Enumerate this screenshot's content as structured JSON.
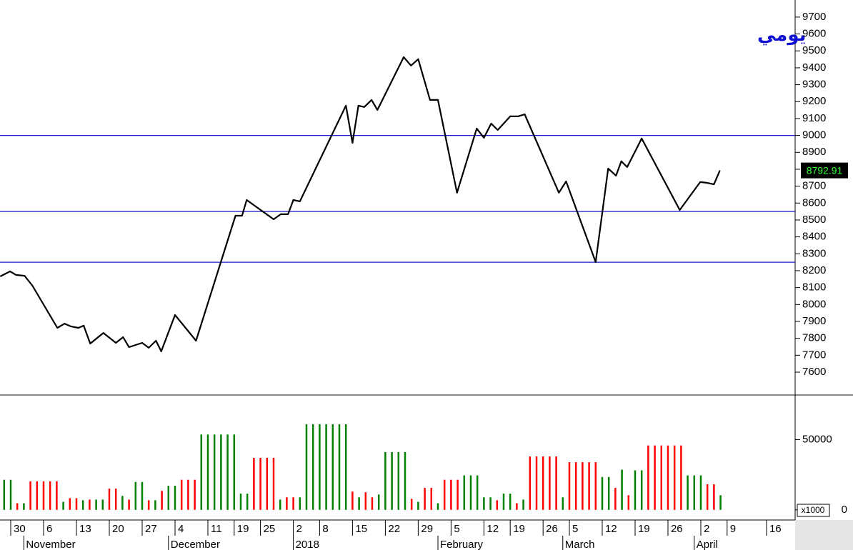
{
  "chart_data": [
    {
      "type": "line",
      "title": "يومي",
      "title_color": "#1010d0",
      "color": "#000000",
      "x": [
        -1.6,
        -0.1,
        0.8,
        2.1,
        3.3,
        7.1,
        8.2,
        9.2,
        10.3,
        11.1,
        12.1,
        14.1,
        16.0,
        17.1,
        18.0,
        20.0,
        21.0,
        22.1,
        22.9,
        25.0,
        28.2,
        34.2,
        35.2,
        35.9,
        40.0,
        41.1,
        42.2,
        43.0,
        44.0,
        51.0,
        52.0,
        52.9,
        53.8,
        54.9,
        55.8,
        59.8,
        60.9,
        62.0,
        63.8,
        65.0,
        67.9,
        70.9,
        72.0,
        73.1,
        74.1,
        76.0,
        77.2,
        78.2,
        83.4,
        84.5,
        89.0,
        90.9,
        92.1,
        92.9,
        93.8,
        96.0,
        101.8,
        104.9,
        105.9,
        107.0,
        107.9
      ],
      "values": [
        8166,
        8196,
        8175,
        8170,
        8111,
        7862,
        7887,
        7870,
        7862,
        7875,
        7769,
        7832,
        7773,
        7807,
        7748,
        7773,
        7744,
        7786,
        7723,
        7938,
        7786,
        8525,
        8525,
        8618,
        8504,
        8534,
        8534,
        8618,
        8610,
        9176,
        8956,
        9176,
        9168,
        9210,
        9151,
        9463,
        9413,
        9451,
        9210,
        9210,
        8661,
        9041,
        8986,
        9070,
        9032,
        9113,
        9113,
        9125,
        8661,
        8728,
        8251,
        8804,
        8762,
        8847,
        8813,
        8982,
        8559,
        8724,
        8720,
        8711,
        8792.91
      ],
      "xlim": [
        -1.63,
        119.35
      ],
      "ylim": [
        7469,
        9801
      ],
      "yticks": [
        7600,
        7700,
        7800,
        7900,
        8000,
        8100,
        8200,
        8300,
        8400,
        8500,
        8600,
        8700,
        8800,
        8900,
        9000,
        9100,
        9200,
        9300,
        9400,
        9500,
        9600,
        9700
      ],
      "hlines": [
        9000,
        8550,
        8250
      ],
      "hline_color": "#1a1acc",
      "last_value": 8792.91
    },
    {
      "type": "bar",
      "unit": "x1000",
      "x": [
        -1,
        0,
        1,
        2,
        3,
        4,
        5,
        6,
        7,
        8,
        9,
        10,
        11,
        12,
        13,
        14,
        15,
        16,
        17,
        18,
        19,
        20,
        21,
        22,
        23,
        24,
        25,
        26,
        27,
        28,
        29,
        30,
        31,
        32,
        33,
        34,
        35,
        36,
        37,
        38,
        39,
        40,
        41,
        42,
        43,
        44,
        45,
        46,
        47,
        48,
        49,
        50,
        51,
        52,
        53,
        54,
        55,
        56,
        57,
        58,
        59,
        60,
        61,
        62,
        63,
        64,
        65,
        66,
        67,
        68,
        69,
        70,
        71,
        72,
        73,
        74,
        75,
        76,
        77,
        78,
        79,
        80,
        81,
        82,
        83,
        84,
        85,
        86,
        87,
        88,
        89,
        90,
        91,
        92,
        93,
        94,
        95,
        96,
        97,
        98,
        99,
        100,
        101,
        102,
        103,
        104,
        105,
        106,
        107,
        108
      ],
      "values": [
        21400,
        21400,
        4700,
        4700,
        20300,
        20300,
        20300,
        20300,
        20300,
        5700,
        8300,
        8300,
        6800,
        7300,
        7300,
        7300,
        15100,
        15100,
        9900,
        7300,
        19800,
        19800,
        6800,
        6800,
        13500,
        17200,
        17200,
        21400,
        21400,
        21400,
        53600,
        53600,
        53600,
        53600,
        53600,
        53600,
        11500,
        11500,
        37000,
        37000,
        37000,
        37000,
        7300,
        8900,
        8900,
        8900,
        60900,
        60900,
        60900,
        60900,
        60900,
        60900,
        60900,
        13000,
        8900,
        12500,
        8900,
        10900,
        41100,
        41100,
        41100,
        41100,
        7800,
        5700,
        15600,
        15600,
        4700,
        21400,
        21400,
        21400,
        24500,
        24500,
        24500,
        8900,
        8900,
        6800,
        11500,
        11500,
        4700,
        7300,
        38000,
        38000,
        38000,
        38000,
        38000,
        8900,
        33900,
        33900,
        33900,
        33900,
        33900,
        23400,
        23400,
        15600,
        28600,
        10400,
        28100,
        28100,
        45800,
        45800,
        45800,
        45800,
        45800,
        45800,
        24500,
        24500,
        24500,
        18200,
        18200,
        10400
      ],
      "colors": [
        "#008000",
        "#008000",
        "#ff0000",
        "#008000",
        "#ff0000",
        "#ff0000",
        "#ff0000",
        "#ff0000",
        "#ff0000",
        "#008000",
        "#ff0000",
        "#ff0000",
        "#008000",
        "#ff0000",
        "#008000",
        "#008000",
        "#ff0000",
        "#ff0000",
        "#008000",
        "#ff0000",
        "#008000",
        "#008000",
        "#ff0000",
        "#008000",
        "#ff0000",
        "#008000",
        "#008000",
        "#ff0000",
        "#ff0000",
        "#ff0000",
        "#008000",
        "#008000",
        "#008000",
        "#008000",
        "#008000",
        "#008000",
        "#008000",
        "#008000",
        "#ff0000",
        "#ff0000",
        "#ff0000",
        "#ff0000",
        "#008000",
        "#ff0000",
        "#ff0000",
        "#008000",
        "#008000",
        "#008000",
        "#008000",
        "#008000",
        "#008000",
        "#008000",
        "#008000",
        "#ff0000",
        "#008000",
        "#ff0000",
        "#ff0000",
        "#008000",
        "#008000",
        "#008000",
        "#008000",
        "#008000",
        "#ff0000",
        "#008000",
        "#ff0000",
        "#ff0000",
        "#008000",
        "#ff0000",
        "#ff0000",
        "#ff0000",
        "#008000",
        "#008000",
        "#008000",
        "#008000",
        "#008000",
        "#ff0000",
        "#008000",
        "#008000",
        "#ff0000",
        "#008000",
        "#ff0000",
        "#ff0000",
        "#ff0000",
        "#ff0000",
        "#ff0000",
        "#008000",
        "#ff0000",
        "#ff0000",
        "#ff0000",
        "#ff0000",
        "#ff0000",
        "#008000",
        "#008000",
        "#ff0000",
        "#008000",
        "#ff0000",
        "#008000",
        "#008000",
        "#ff0000",
        "#ff0000",
        "#ff0000",
        "#ff0000",
        "#ff0000",
        "#ff0000",
        "#008000",
        "#008000",
        "#008000",
        "#ff0000",
        "#ff0000",
        "#008000"
      ],
      "xlim": [
        -1.63,
        119.35
      ],
      "ylim": [
        -5700,
        80200
      ],
      "yticks": [
        0,
        50000
      ],
      "xticks": [
        {
          "value": 0,
          "label": "30"
        },
        {
          "value": 5,
          "label": "6"
        },
        {
          "value": 10,
          "label": "13"
        },
        {
          "value": 15,
          "label": "20"
        },
        {
          "value": 20,
          "label": "27"
        },
        {
          "value": 25,
          "label": "4"
        },
        {
          "value": 30,
          "label": "11"
        },
        {
          "value": 34,
          "label": "19"
        },
        {
          "value": 38,
          "label": "25"
        },
        {
          "value": 43,
          "label": "2"
        },
        {
          "value": 47,
          "label": "8"
        },
        {
          "value": 52,
          "label": "15"
        },
        {
          "value": 57,
          "label": "22"
        },
        {
          "value": 62,
          "label": "29"
        },
        {
          "value": 67,
          "label": "5"
        },
        {
          "value": 72,
          "label": "12"
        },
        {
          "value": 76,
          "label": "19"
        },
        {
          "value": 81,
          "label": "26"
        },
        {
          "value": 85,
          "label": "5"
        },
        {
          "value": 90,
          "label": "12"
        },
        {
          "value": 95,
          "label": "19"
        },
        {
          "value": 100,
          "label": "26"
        },
        {
          "value": 105,
          "label": "2"
        },
        {
          "value": 109,
          "label": "9"
        },
        {
          "value": 115,
          "label": "16"
        }
      ],
      "months": [
        {
          "value": 2,
          "label": "November"
        },
        {
          "value": 24,
          "label": "December"
        },
        {
          "value": 43,
          "label": "2018"
        },
        {
          "value": 65,
          "label": "February"
        },
        {
          "value": 84,
          "label": "March"
        },
        {
          "value": 104,
          "label": "April"
        }
      ]
    }
  ]
}
